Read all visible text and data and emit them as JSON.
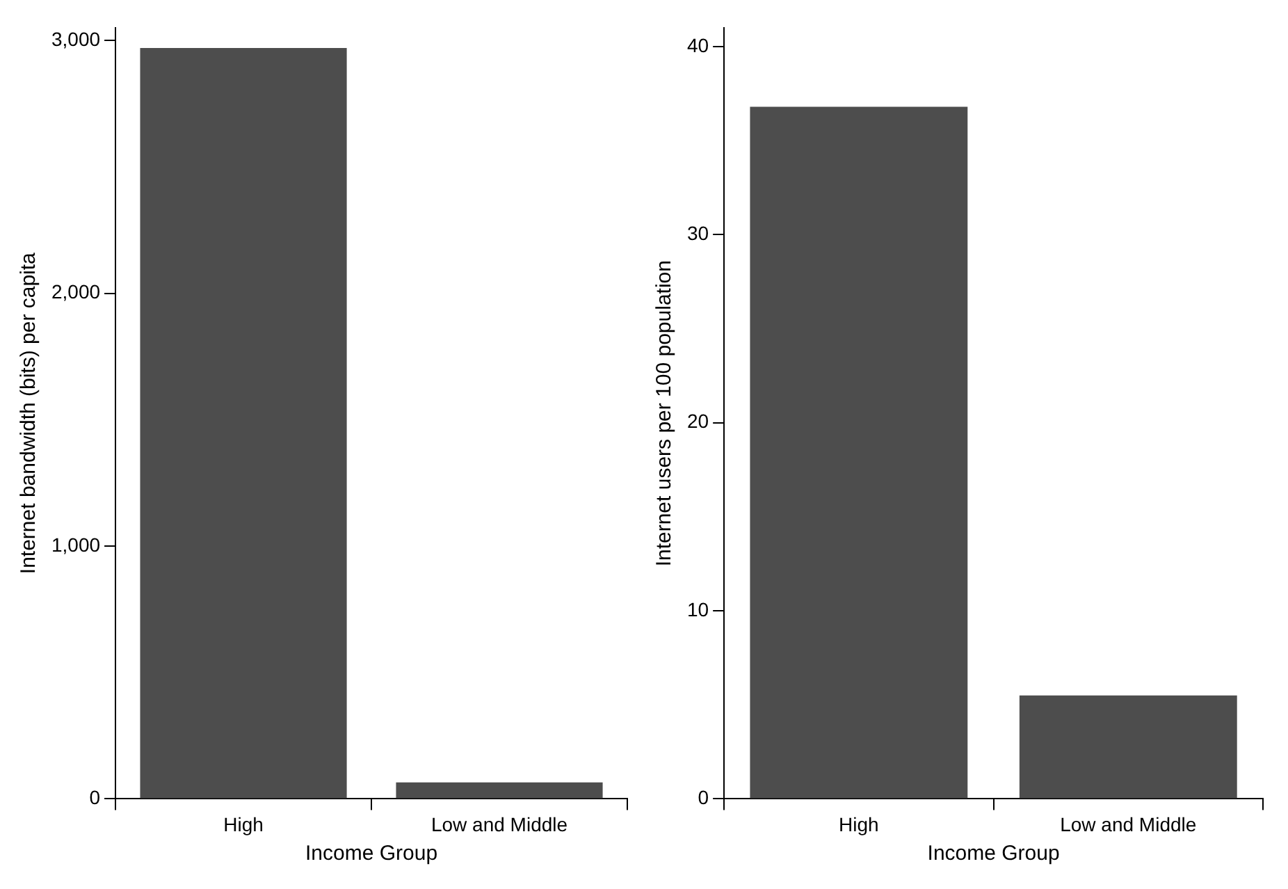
{
  "chart_data": [
    {
      "type": "bar",
      "categories": [
        "High",
        "Low and Middle"
      ],
      "values": [
        2970,
        65
      ],
      "color": "#4d4d4d",
      "xlabel": "Income Group",
      "ylabel": "Internet bandwidth (bits) per capita",
      "ylim": [
        0,
        3050
      ],
      "yticks": [
        0,
        {
          "value": 1000,
          "label": "1,000"
        },
        {
          "value": 2000,
          "label": "2,000"
        },
        {
          "value": 3000,
          "label": "3,000"
        }
      ],
      "grid": false
    },
    {
      "type": "bar",
      "categories": [
        "High",
        "Low and Middle"
      ],
      "values": [
        36.8,
        5.5
      ],
      "color": "#4d4d4d",
      "xlabel": "Income Group",
      "ylabel": "Internet users per 100 population",
      "ylim": [
        0,
        41
      ],
      "yticks": [
        0,
        10,
        20,
        30,
        40
      ],
      "grid": false
    }
  ]
}
